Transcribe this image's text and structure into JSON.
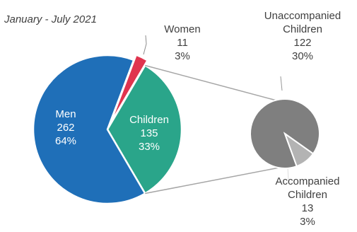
{
  "chart_data": {
    "type": "pie",
    "subtitle": "January - July 2021",
    "main_pie": {
      "slices": [
        {
          "name": "Men",
          "value": 262,
          "percent": "64%",
          "color": "#1f6fb8"
        },
        {
          "name": "Children",
          "value": 135,
          "percent": "33%",
          "color": "#2aa58a"
        },
        {
          "name": "Women",
          "value": 11,
          "percent": "3%",
          "color": "#e0344e"
        }
      ]
    },
    "breakdown_pie": {
      "of": "Children",
      "slices": [
        {
          "name": "Unaccompanied Children",
          "value": 122,
          "percent": "30%",
          "color": "#7f7f7f"
        },
        {
          "name": "Accompanied Children",
          "value": 13,
          "percent": "3%",
          "color": "#b3b3b3"
        }
      ]
    },
    "labels": {
      "women": {
        "name": "Women",
        "value": "11",
        "percent": "3%"
      },
      "men": {
        "name": "Men",
        "value": "262",
        "percent": "64%"
      },
      "children": {
        "name": "Children",
        "value": "135",
        "percent": "33%"
      },
      "unaccompanied": {
        "name_line1": "Unaccompanied",
        "name_line2": "Children",
        "value": "122",
        "percent": "30%"
      },
      "accompanied": {
        "name_line1": "Accompanied",
        "name_line2": "Children",
        "value": "13",
        "percent": "3%"
      }
    }
  }
}
